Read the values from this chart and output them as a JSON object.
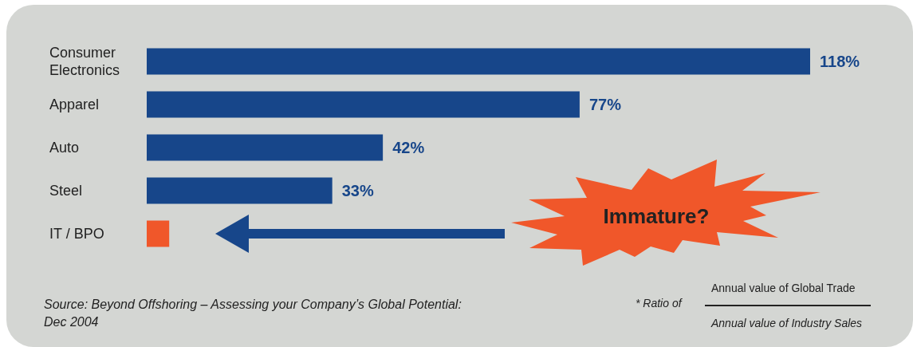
{
  "chart_data": {
    "type": "bar",
    "orientation": "horizontal",
    "categories": [
      "Consumer Electronics",
      "Apparel",
      "Auto",
      "Steel",
      "IT / BPO"
    ],
    "values": [
      118,
      77,
      42,
      33,
      4
    ],
    "colors": [
      "#17468a",
      "#17468a",
      "#17468a",
      "#17468a",
      "#f0572a"
    ],
    "value_labels": [
      "118%",
      "77%",
      "42%",
      "33%",
      null
    ],
    "annotations": [
      "Immature?",
      "* Ratio of",
      "Annual value of Global Trade",
      "Annual value of Industry Sales",
      "Source: Beyond Offshoring – Assessing your Company’s Global Potential:",
      "Dec 2004"
    ]
  }
}
